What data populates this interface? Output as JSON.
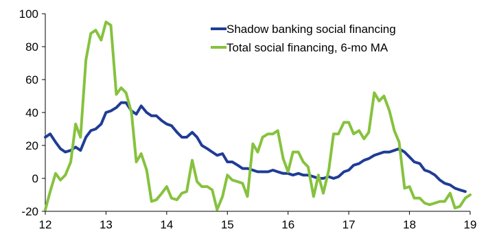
{
  "chart_data": {
    "type": "line",
    "title": "",
    "xlabel": "",
    "ylabel": "",
    "xlim": [
      12,
      19
    ],
    "ylim": [
      -20,
      100
    ],
    "x_ticks": [
      12,
      13,
      14,
      15,
      16,
      17,
      18,
      19
    ],
    "y_ticks": [
      -20,
      0,
      20,
      40,
      60,
      80,
      100
    ],
    "grid": false,
    "legend_position": "top-right",
    "series": [
      {
        "name": "Shadow banking social financing",
        "color": "#1f3c96",
        "x": [
          12.0,
          12.08,
          12.17,
          12.25,
          12.33,
          12.42,
          12.5,
          12.58,
          12.67,
          12.75,
          12.83,
          12.92,
          13.0,
          13.08,
          13.17,
          13.25,
          13.33,
          13.42,
          13.5,
          13.58,
          13.67,
          13.75,
          13.83,
          13.92,
          14.0,
          14.08,
          14.17,
          14.25,
          14.33,
          14.42,
          14.5,
          14.58,
          14.67,
          14.75,
          14.83,
          14.92,
          15.0,
          15.08,
          15.17,
          15.25,
          15.33,
          15.42,
          15.5,
          15.58,
          15.67,
          15.75,
          15.83,
          15.92,
          16.0,
          16.08,
          16.17,
          16.25,
          16.33,
          16.42,
          16.5,
          16.58,
          16.67,
          16.75,
          16.83,
          16.92,
          17.0,
          17.08,
          17.17,
          17.25,
          17.33,
          17.42,
          17.5,
          17.58,
          17.67,
          17.75,
          17.83,
          17.92,
          18.0,
          18.08,
          18.17,
          18.25,
          18.33,
          18.42,
          18.5,
          18.58,
          18.67,
          18.75,
          18.83,
          18.92
        ],
        "values": [
          25,
          27,
          22,
          18,
          16,
          17,
          19,
          17,
          25,
          29,
          30,
          33,
          40,
          41,
          43,
          46,
          46,
          41,
          39,
          44,
          40,
          38,
          38,
          35,
          33,
          32,
          28,
          25,
          25,
          28,
          25,
          20,
          18,
          16,
          14,
          15,
          10,
          10,
          8,
          6,
          6,
          5,
          4,
          4,
          4,
          5,
          4,
          3,
          3,
          2,
          3,
          2,
          2,
          1,
          0,
          0,
          1,
          0,
          1,
          4,
          5,
          8,
          9,
          11,
          12,
          14,
          15,
          16,
          16,
          17,
          18,
          16,
          13,
          10,
          9,
          5,
          4,
          2,
          -1,
          -3,
          -4,
          -6,
          -7,
          -8
        ]
      },
      {
        "name": "Total social financing, 6-mo MA",
        "color": "#86c23e",
        "x": [
          12.0,
          12.08,
          12.17,
          12.25,
          12.33,
          12.42,
          12.5,
          12.58,
          12.67,
          12.75,
          12.83,
          12.92,
          13.0,
          13.08,
          13.17,
          13.25,
          13.33,
          13.42,
          13.5,
          13.58,
          13.67,
          13.75,
          13.83,
          13.92,
          14.0,
          14.08,
          14.17,
          14.25,
          14.33,
          14.42,
          14.5,
          14.58,
          14.67,
          14.75,
          14.83,
          14.92,
          15.0,
          15.08,
          15.17,
          15.25,
          15.33,
          15.42,
          15.5,
          15.58,
          15.67,
          15.75,
          15.83,
          15.92,
          16.0,
          16.08,
          16.17,
          16.25,
          16.33,
          16.42,
          16.5,
          16.58,
          16.67,
          16.75,
          16.83,
          16.92,
          17.0,
          17.08,
          17.17,
          17.25,
          17.33,
          17.42,
          17.5,
          17.58,
          17.67,
          17.75,
          17.83,
          17.92,
          18.0,
          18.08,
          18.17,
          18.25,
          18.33,
          18.42,
          18.5,
          18.58,
          18.67,
          18.75,
          18.83,
          18.92,
          19.0
        ],
        "values": [
          -19,
          -8,
          3,
          -1,
          2,
          10,
          33,
          25,
          72,
          88,
          90,
          84,
          95,
          93,
          51,
          55,
          52,
          40,
          10,
          15,
          5,
          -14,
          -13,
          -9,
          -5,
          -12,
          -13,
          -9,
          -8,
          11,
          -2,
          -5,
          -5,
          -7,
          -19,
          -11,
          2,
          -1,
          -2,
          -3,
          -11,
          21,
          16,
          25,
          27,
          27,
          29,
          12,
          4,
          16,
          16,
          10,
          7,
          -11,
          2,
          -9,
          5,
          27,
          27,
          34,
          34,
          27,
          29,
          24,
          28,
          52,
          47,
          50,
          41,
          29,
          22,
          -6,
          -5,
          -12,
          -12,
          -15,
          -16,
          -15,
          -14,
          -14,
          -9,
          -18,
          -17,
          -12,
          -10
        ]
      }
    ]
  }
}
